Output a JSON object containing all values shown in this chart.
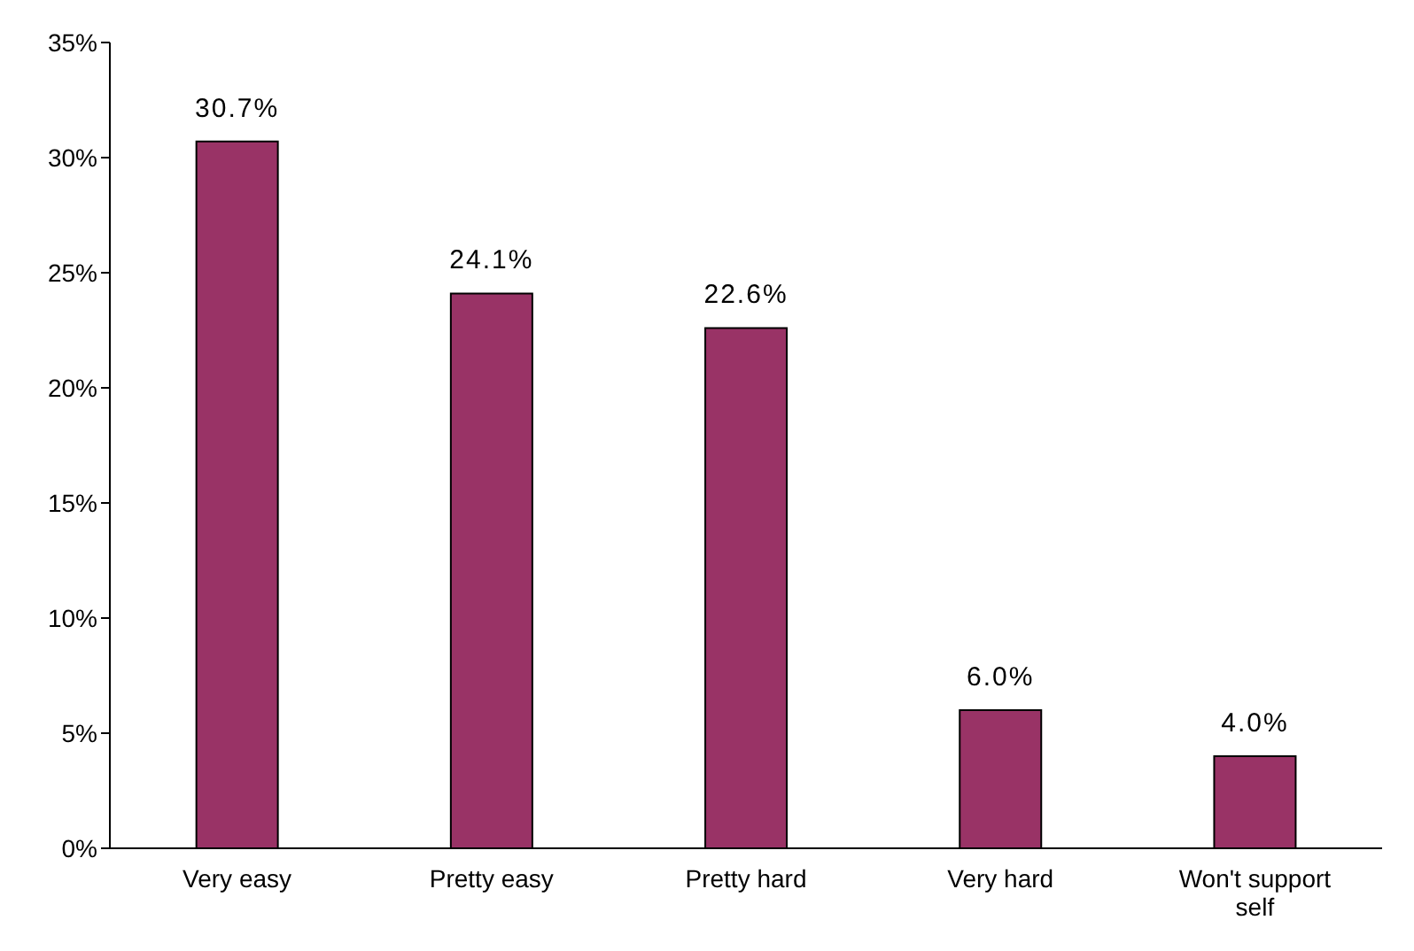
{
  "chart_data": {
    "type": "bar",
    "categories": [
      "Very easy",
      "Pretty easy",
      "Pretty hard",
      "Very hard",
      "Won't support self"
    ],
    "values": [
      30.7,
      24.1,
      22.6,
      6.0,
      4.0
    ],
    "value_labels": [
      "30.7%",
      "24.1%",
      "22.6%",
      "6.0%",
      "4.0%"
    ],
    "color": "#993366",
    "ylim": [
      0,
      35
    ],
    "yticks": [
      {
        "value": 0,
        "label": "0%"
      },
      {
        "value": 5,
        "label": "5%"
      },
      {
        "value": 10,
        "label": "10%"
      },
      {
        "value": 15,
        "label": "15%"
      },
      {
        "value": 20,
        "label": "20%"
      },
      {
        "value": 25,
        "label": "25%"
      },
      {
        "value": 30,
        "label": "30%"
      },
      {
        "value": 35,
        "label": "35%"
      }
    ],
    "grid": false,
    "legend": false
  }
}
